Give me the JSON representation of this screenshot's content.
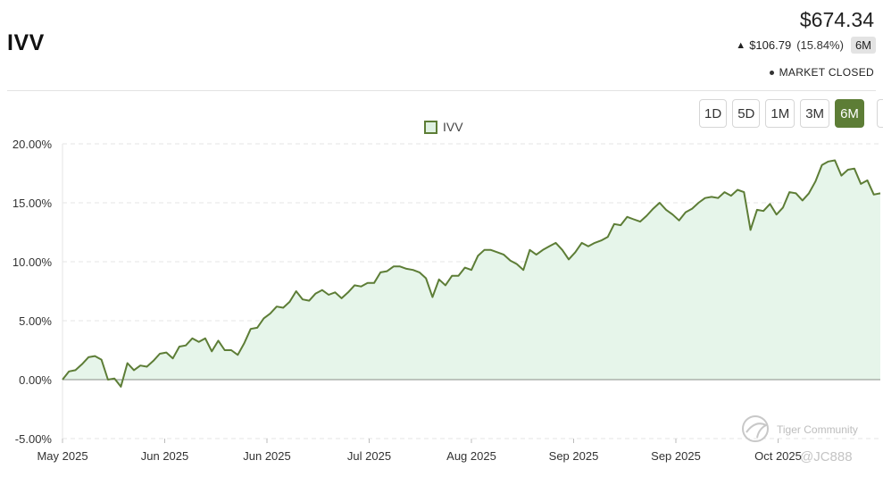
{
  "header": {
    "ticker": "IVV",
    "price": "$674.34",
    "change_arrow": "▲",
    "change": "$106.79",
    "change_pct": "(15.84%)",
    "period": "6M",
    "market_status": "MARKET CLOSED"
  },
  "ranges": [
    "1D",
    "5D",
    "1M",
    "3M",
    "6M"
  ],
  "active_range": "6M",
  "legend": {
    "label": "IVV"
  },
  "watermark": {
    "brand": "Tiger Community",
    "user": "@JC888"
  },
  "colors": {
    "line": "#5d7d36",
    "fill": "#e6f5ea",
    "grid": "#e6e6e6",
    "active": "#5d7d36"
  },
  "chart_data": {
    "type": "area",
    "title": "",
    "series_name": "IVV",
    "xlabel": "",
    "ylabel": "",
    "ylim": [
      -5,
      20
    ],
    "yticks": [
      20,
      15,
      10,
      5,
      0,
      -5
    ],
    "ytick_labels": [
      "20.00%",
      "15.00%",
      "10.00%",
      "5.00%",
      "0.00%",
      "-5.00%"
    ],
    "xtick_labels": [
      "May 2025",
      "Jun 2025",
      "Jun 2025",
      "Jul 2025",
      "Aug 2025",
      "Sep 2025",
      "Sep 2025",
      "Oct 2025"
    ],
    "grid": true,
    "values": [
      0.0,
      0.7,
      0.8,
      1.3,
      1.9,
      2.0,
      1.7,
      0.0,
      0.1,
      -0.6,
      1.4,
      0.8,
      1.2,
      1.1,
      1.6,
      2.2,
      2.3,
      1.8,
      2.8,
      2.9,
      3.5,
      3.2,
      3.5,
      2.4,
      3.3,
      2.5,
      2.5,
      2.1,
      3.1,
      4.3,
      4.4,
      5.2,
      5.6,
      6.2,
      6.1,
      6.6,
      7.5,
      6.8,
      6.7,
      7.3,
      7.6,
      7.2,
      7.4,
      6.9,
      7.4,
      8.0,
      7.9,
      8.2,
      8.2,
      9.1,
      9.2,
      9.6,
      9.6,
      9.4,
      9.3,
      9.1,
      8.6,
      7.0,
      8.5,
      8.0,
      8.8,
      8.8,
      9.5,
      9.3,
      10.5,
      11.0,
      11.0,
      10.8,
      10.6,
      10.1,
      9.8,
      9.3,
      11.0,
      10.6,
      11.0,
      11.3,
      11.6,
      11.0,
      10.2,
      10.8,
      11.6,
      11.3,
      11.6,
      11.8,
      12.1,
      13.2,
      13.1,
      13.8,
      13.6,
      13.4,
      13.9,
      14.5,
      15.0,
      14.4,
      14.0,
      13.5,
      14.2,
      14.5,
      15.0,
      15.4,
      15.5,
      15.4,
      15.9,
      15.6,
      16.1,
      15.9,
      12.7,
      14.4,
      14.3,
      14.9,
      14.0,
      14.6,
      15.9,
      15.8,
      15.2,
      15.8,
      16.8,
      18.2,
      18.5,
      18.6,
      17.3,
      17.8,
      17.9,
      16.6,
      16.9,
      15.7,
      15.8
    ]
  }
}
